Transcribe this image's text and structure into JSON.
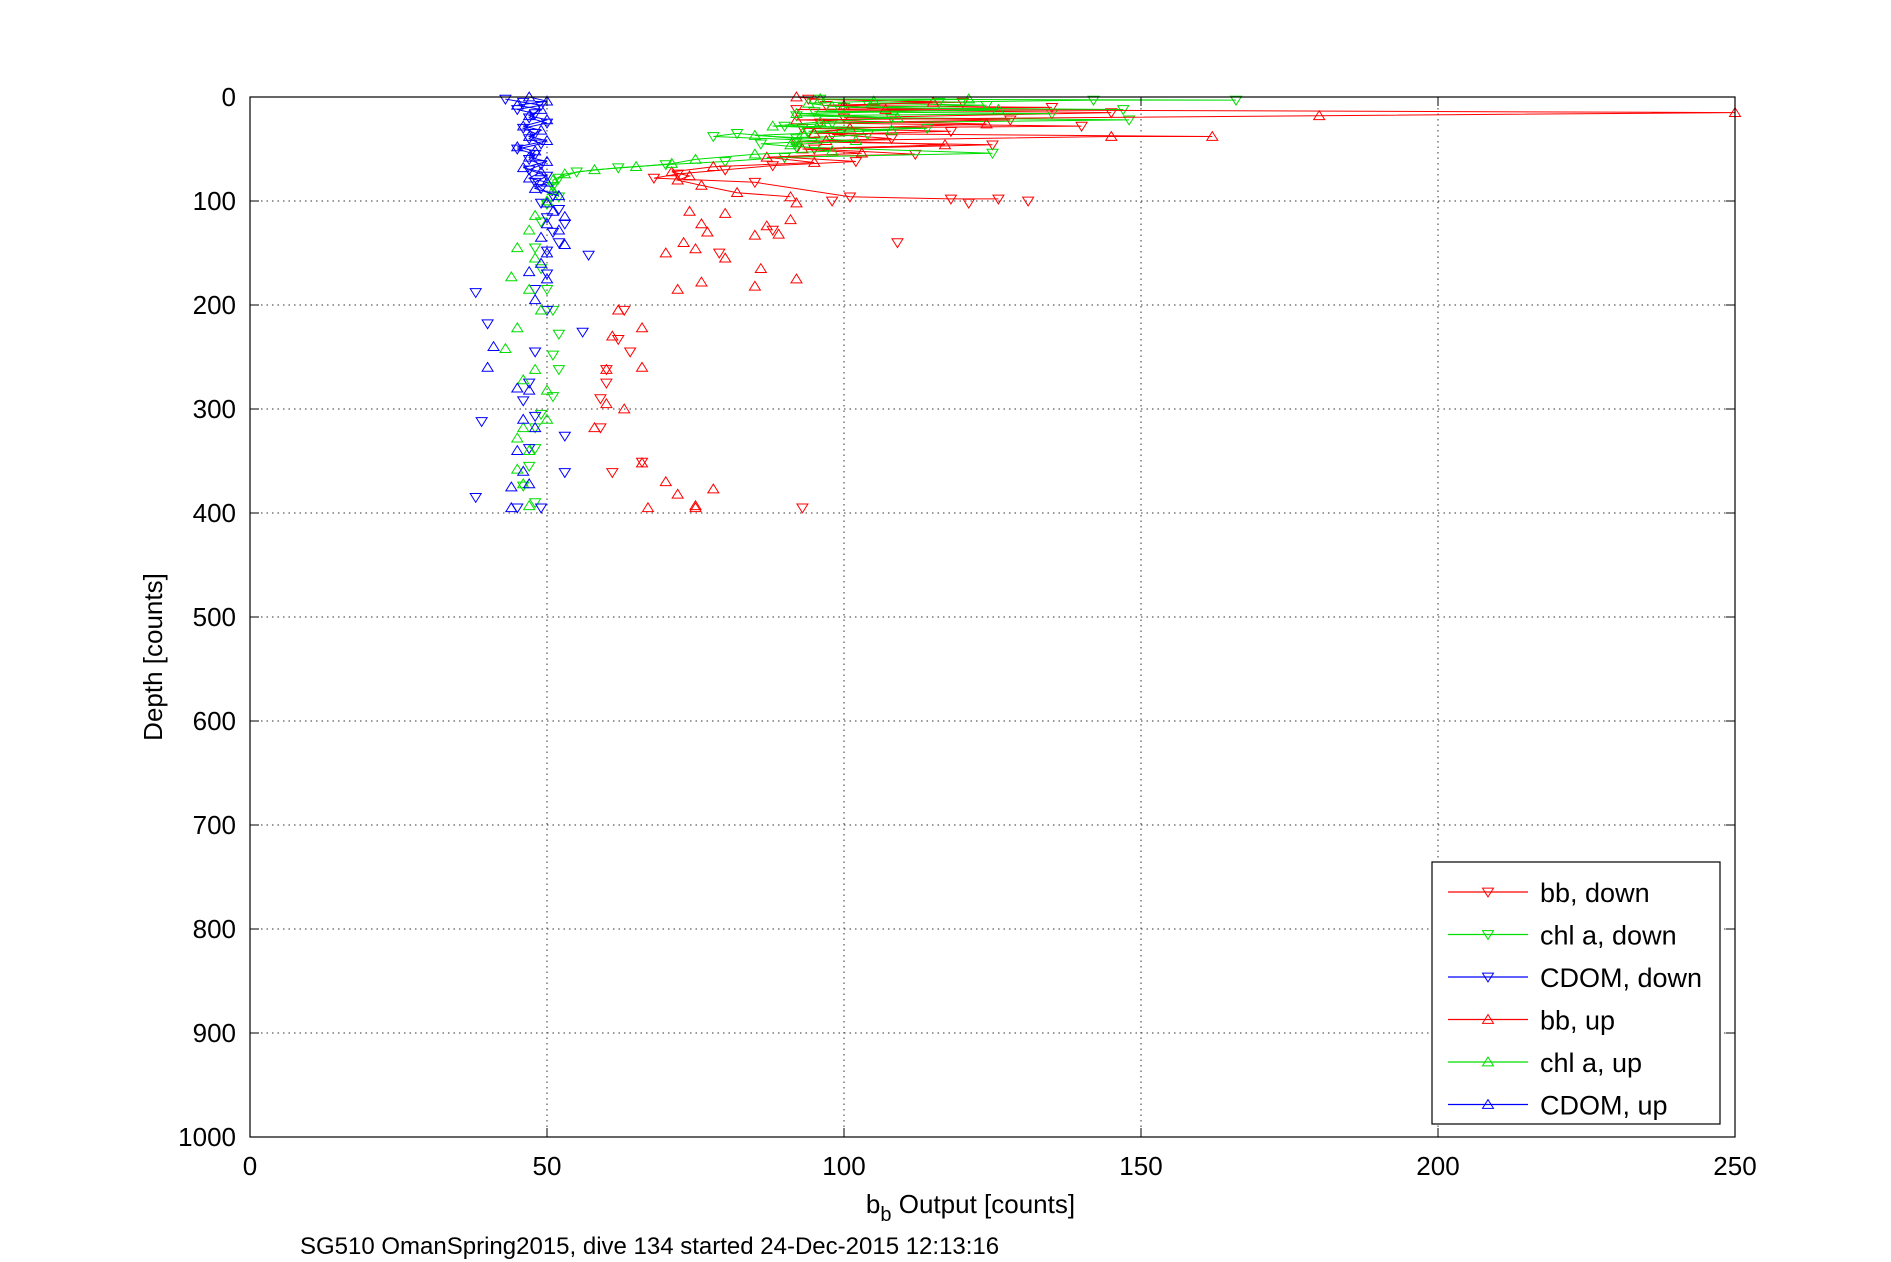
{
  "chart_data": {
    "type": "scatter",
    "title": "",
    "xlabel": "b_b Output [counts]",
    "xlabel_main": "b",
    "xlabel_sub": "b",
    "xlabel_rest": " Output [counts]",
    "ylabel": "Depth [counts]",
    "caption": "SG510 OmanSpring2015, dive 134 started 24-Dec-2015 12:13:16",
    "xlim": [
      0,
      250
    ],
    "ylim": [
      0,
      1000
    ],
    "y_reversed": true,
    "grid": true,
    "legend_position": "bottom-right",
    "x_ticks": [
      "0",
      "50",
      "100",
      "150",
      "200",
      "250"
    ],
    "y_ticks": [
      "0",
      "100",
      "200",
      "300",
      "400",
      "500",
      "600",
      "700",
      "800",
      "900",
      "1000"
    ],
    "series": [
      {
        "name": "bb, down",
        "color": "#ff0000",
        "marker": "triangle-down",
        "points": [
          [
            94,
            2
          ],
          [
            120,
            5
          ],
          [
            97,
            8
          ],
          [
            135,
            10
          ],
          [
            92,
            12
          ],
          [
            145,
            15
          ],
          [
            100,
            20
          ],
          [
            128,
            22
          ],
          [
            96,
            25
          ],
          [
            140,
            28
          ],
          [
            93,
            30
          ],
          [
            118,
            33
          ],
          [
            98,
            36
          ],
          [
            108,
            40
          ],
          [
            92,
            43
          ],
          [
            125,
            46
          ],
          [
            95,
            50
          ],
          [
            112,
            55
          ],
          [
            90,
            58
          ],
          [
            102,
            62
          ],
          [
            88,
            66
          ],
          [
            80,
            70
          ],
          [
            72,
            74
          ],
          [
            68,
            78
          ],
          [
            85,
            82
          ],
          [
            101,
            96
          ],
          [
            118,
            98
          ],
          [
            121,
            102
          ],
          [
            126,
            98
          ],
          [
            131,
            100
          ],
          [
            98,
            100
          ],
          [
            109,
            140
          ],
          [
            79,
            150
          ],
          [
            88,
            128
          ],
          [
            63,
            205
          ],
          [
            62,
            233
          ],
          [
            64,
            245
          ],
          [
            60,
            262
          ],
          [
            60,
            275
          ],
          [
            59,
            290
          ],
          [
            59,
            318
          ],
          [
            66,
            351
          ],
          [
            61,
            361
          ],
          [
            93,
            395
          ]
        ]
      },
      {
        "name": "chl a, down",
        "color": "#00dd00",
        "marker": "triangle-down",
        "points": [
          [
            96,
            2
          ],
          [
            166,
            3
          ],
          [
            142,
            3
          ],
          [
            116,
            5
          ],
          [
            104,
            6
          ],
          [
            124,
            8
          ],
          [
            100,
            10
          ],
          [
            147,
            12
          ],
          [
            95,
            14
          ],
          [
            135,
            16
          ],
          [
            92,
            18
          ],
          [
            108,
            20
          ],
          [
            148,
            22
          ],
          [
            98,
            25
          ],
          [
            90,
            28
          ],
          [
            114,
            30
          ],
          [
            94,
            33
          ],
          [
            104,
            36
          ],
          [
            92,
            40
          ],
          [
            82,
            35
          ],
          [
            78,
            38
          ],
          [
            96,
            42
          ],
          [
            86,
            45
          ],
          [
            92,
            48
          ],
          [
            125,
            54
          ],
          [
            90,
            58
          ],
          [
            80,
            62
          ],
          [
            70,
            65
          ],
          [
            62,
            68
          ],
          [
            55,
            72
          ],
          [
            52,
            78
          ],
          [
            51,
            86
          ],
          [
            52,
            96
          ],
          [
            50,
            103
          ],
          [
            49,
            120
          ],
          [
            48,
            145
          ],
          [
            49,
            165
          ],
          [
            50,
            185
          ],
          [
            51,
            205
          ],
          [
            52,
            228
          ],
          [
            51,
            248
          ],
          [
            52,
            262
          ],
          [
            51,
            288
          ],
          [
            49,
            305
          ],
          [
            48,
            318
          ],
          [
            48,
            338
          ],
          [
            47,
            355
          ],
          [
            46,
            374
          ],
          [
            48,
            390
          ]
        ]
      },
      {
        "name": "CDOM, down",
        "color": "#0000ff",
        "marker": "triangle-down",
        "points": [
          [
            43,
            2
          ],
          [
            46,
            5
          ],
          [
            49,
            8
          ],
          [
            45,
            12
          ],
          [
            48,
            16
          ],
          [
            47,
            20
          ],
          [
            50,
            25
          ],
          [
            46,
            30
          ],
          [
            48,
            35
          ],
          [
            47,
            40
          ],
          [
            49,
            45
          ],
          [
            45,
            50
          ],
          [
            48,
            55
          ],
          [
            47,
            60
          ],
          [
            49,
            65
          ],
          [
            47,
            70
          ],
          [
            50,
            76
          ],
          [
            48,
            82
          ],
          [
            49,
            88
          ],
          [
            51,
            95
          ],
          [
            49,
            102
          ],
          [
            52,
            108
          ],
          [
            50,
            116
          ],
          [
            53,
            122
          ],
          [
            51,
            130
          ],
          [
            52,
            140
          ],
          [
            50,
            148
          ],
          [
            57,
            152
          ],
          [
            50,
            170
          ],
          [
            48,
            185
          ],
          [
            38,
            188
          ],
          [
            50,
            205
          ],
          [
            40,
            218
          ],
          [
            56,
            226
          ],
          [
            48,
            245
          ],
          [
            47,
            275
          ],
          [
            46,
            292
          ],
          [
            48,
            307
          ],
          [
            53,
            326
          ],
          [
            47,
            338
          ],
          [
            39,
            312
          ],
          [
            53,
            361
          ],
          [
            38,
            385
          ],
          [
            45,
            395
          ],
          [
            49,
            395
          ]
        ]
      },
      {
        "name": "bb, up",
        "color": "#ff0000",
        "marker": "triangle-up",
        "points": [
          [
            92,
            0
          ],
          [
            96,
            2
          ],
          [
            115,
            5
          ],
          [
            100,
            8
          ],
          [
            107,
            12
          ],
          [
            250,
            15
          ],
          [
            180,
            18
          ],
          [
            92,
            22
          ],
          [
            124,
            26
          ],
          [
            101,
            30
          ],
          [
            95,
            35
          ],
          [
            162,
            38
          ],
          [
            145,
            38
          ],
          [
            97,
            42
          ],
          [
            117,
            46
          ],
          [
            93,
            50
          ],
          [
            103,
            54
          ],
          [
            87,
            58
          ],
          [
            95,
            63
          ],
          [
            78,
            67
          ],
          [
            71,
            72
          ],
          [
            74,
            76
          ],
          [
            72,
            80
          ],
          [
            76,
            85
          ],
          [
            82,
            92
          ],
          [
            91,
            96
          ],
          [
            92,
            102
          ],
          [
            74,
            110
          ],
          [
            80,
            112
          ],
          [
            91,
            118
          ],
          [
            76,
            122
          ],
          [
            87,
            124
          ],
          [
            77,
            130
          ],
          [
            85,
            133
          ],
          [
            89,
            132
          ],
          [
            73,
            140
          ],
          [
            75,
            146
          ],
          [
            70,
            150
          ],
          [
            80,
            155
          ],
          [
            86,
            165
          ],
          [
            92,
            175
          ],
          [
            76,
            178
          ],
          [
            85,
            182
          ],
          [
            72,
            185
          ],
          [
            62,
            205
          ],
          [
            66,
            222
          ],
          [
            61,
            230
          ],
          [
            60,
            262
          ],
          [
            66,
            260
          ],
          [
            60,
            295
          ],
          [
            63,
            300
          ],
          [
            58,
            318
          ],
          [
            66,
            352
          ],
          [
            70,
            370
          ],
          [
            72,
            382
          ],
          [
            78,
            377
          ],
          [
            75,
            393
          ],
          [
            67,
            395
          ],
          [
            75,
            395
          ]
        ]
      },
      {
        "name": "chl a, up",
        "color": "#00dd00",
        "marker": "triangle-up",
        "points": [
          [
            96,
            2
          ],
          [
            121,
            2
          ],
          [
            105,
            4
          ],
          [
            94,
            6
          ],
          [
            98,
            9
          ],
          [
            126,
            12
          ],
          [
            92,
            16
          ],
          [
            109,
            20
          ],
          [
            96,
            24
          ],
          [
            88,
            28
          ],
          [
            108,
            32
          ],
          [
            93,
            35
          ],
          [
            85,
            37
          ],
          [
            102,
            42
          ],
          [
            91,
            46
          ],
          [
            98,
            52
          ],
          [
            85,
            55
          ],
          [
            75,
            60
          ],
          [
            71,
            64
          ],
          [
            65,
            67
          ],
          [
            58,
            70
          ],
          [
            53,
            74
          ],
          [
            51,
            80
          ],
          [
            51,
            90
          ],
          [
            50,
            100
          ],
          [
            48,
            114
          ],
          [
            47,
            128
          ],
          [
            45,
            145
          ],
          [
            48,
            155
          ],
          [
            44,
            173
          ],
          [
            47,
            185
          ],
          [
            49,
            205
          ],
          [
            45,
            222
          ],
          [
            43,
            242
          ],
          [
            48,
            262
          ],
          [
            46,
            272
          ],
          [
            50,
            282
          ],
          [
            50,
            310
          ],
          [
            46,
            318
          ],
          [
            45,
            328
          ],
          [
            47,
            340
          ],
          [
            45,
            358
          ],
          [
            46,
            372
          ],
          [
            47,
            393
          ]
        ]
      },
      {
        "name": "CDOM, up",
        "color": "#0000ff",
        "marker": "triangle-up",
        "points": [
          [
            47,
            0
          ],
          [
            50,
            4
          ],
          [
            45,
            8
          ],
          [
            49,
            12
          ],
          [
            47,
            18
          ],
          [
            50,
            22
          ],
          [
            46,
            28
          ],
          [
            49,
            32
          ],
          [
            47,
            38
          ],
          [
            50,
            42
          ],
          [
            45,
            48
          ],
          [
            48,
            52
          ],
          [
            47,
            58
          ],
          [
            50,
            62
          ],
          [
            46,
            68
          ],
          [
            49,
            72
          ],
          [
            47,
            78
          ],
          [
            50,
            82
          ],
          [
            48,
            88
          ],
          [
            52,
            95
          ],
          [
            50,
            102
          ],
          [
            51,
            110
          ],
          [
            53,
            115
          ],
          [
            50,
            122
          ],
          [
            52,
            128
          ],
          [
            49,
            135
          ],
          [
            53,
            142
          ],
          [
            50,
            150
          ],
          [
            49,
            160
          ],
          [
            47,
            168
          ],
          [
            50,
            175
          ],
          [
            48,
            195
          ],
          [
            41,
            240
          ],
          [
            40,
            260
          ],
          [
            45,
            280
          ],
          [
            47,
            282
          ],
          [
            46,
            310
          ],
          [
            48,
            318
          ],
          [
            45,
            340
          ],
          [
            46,
            360
          ],
          [
            47,
            372
          ],
          [
            44,
            375
          ],
          [
            44,
            395
          ]
        ]
      }
    ]
  }
}
